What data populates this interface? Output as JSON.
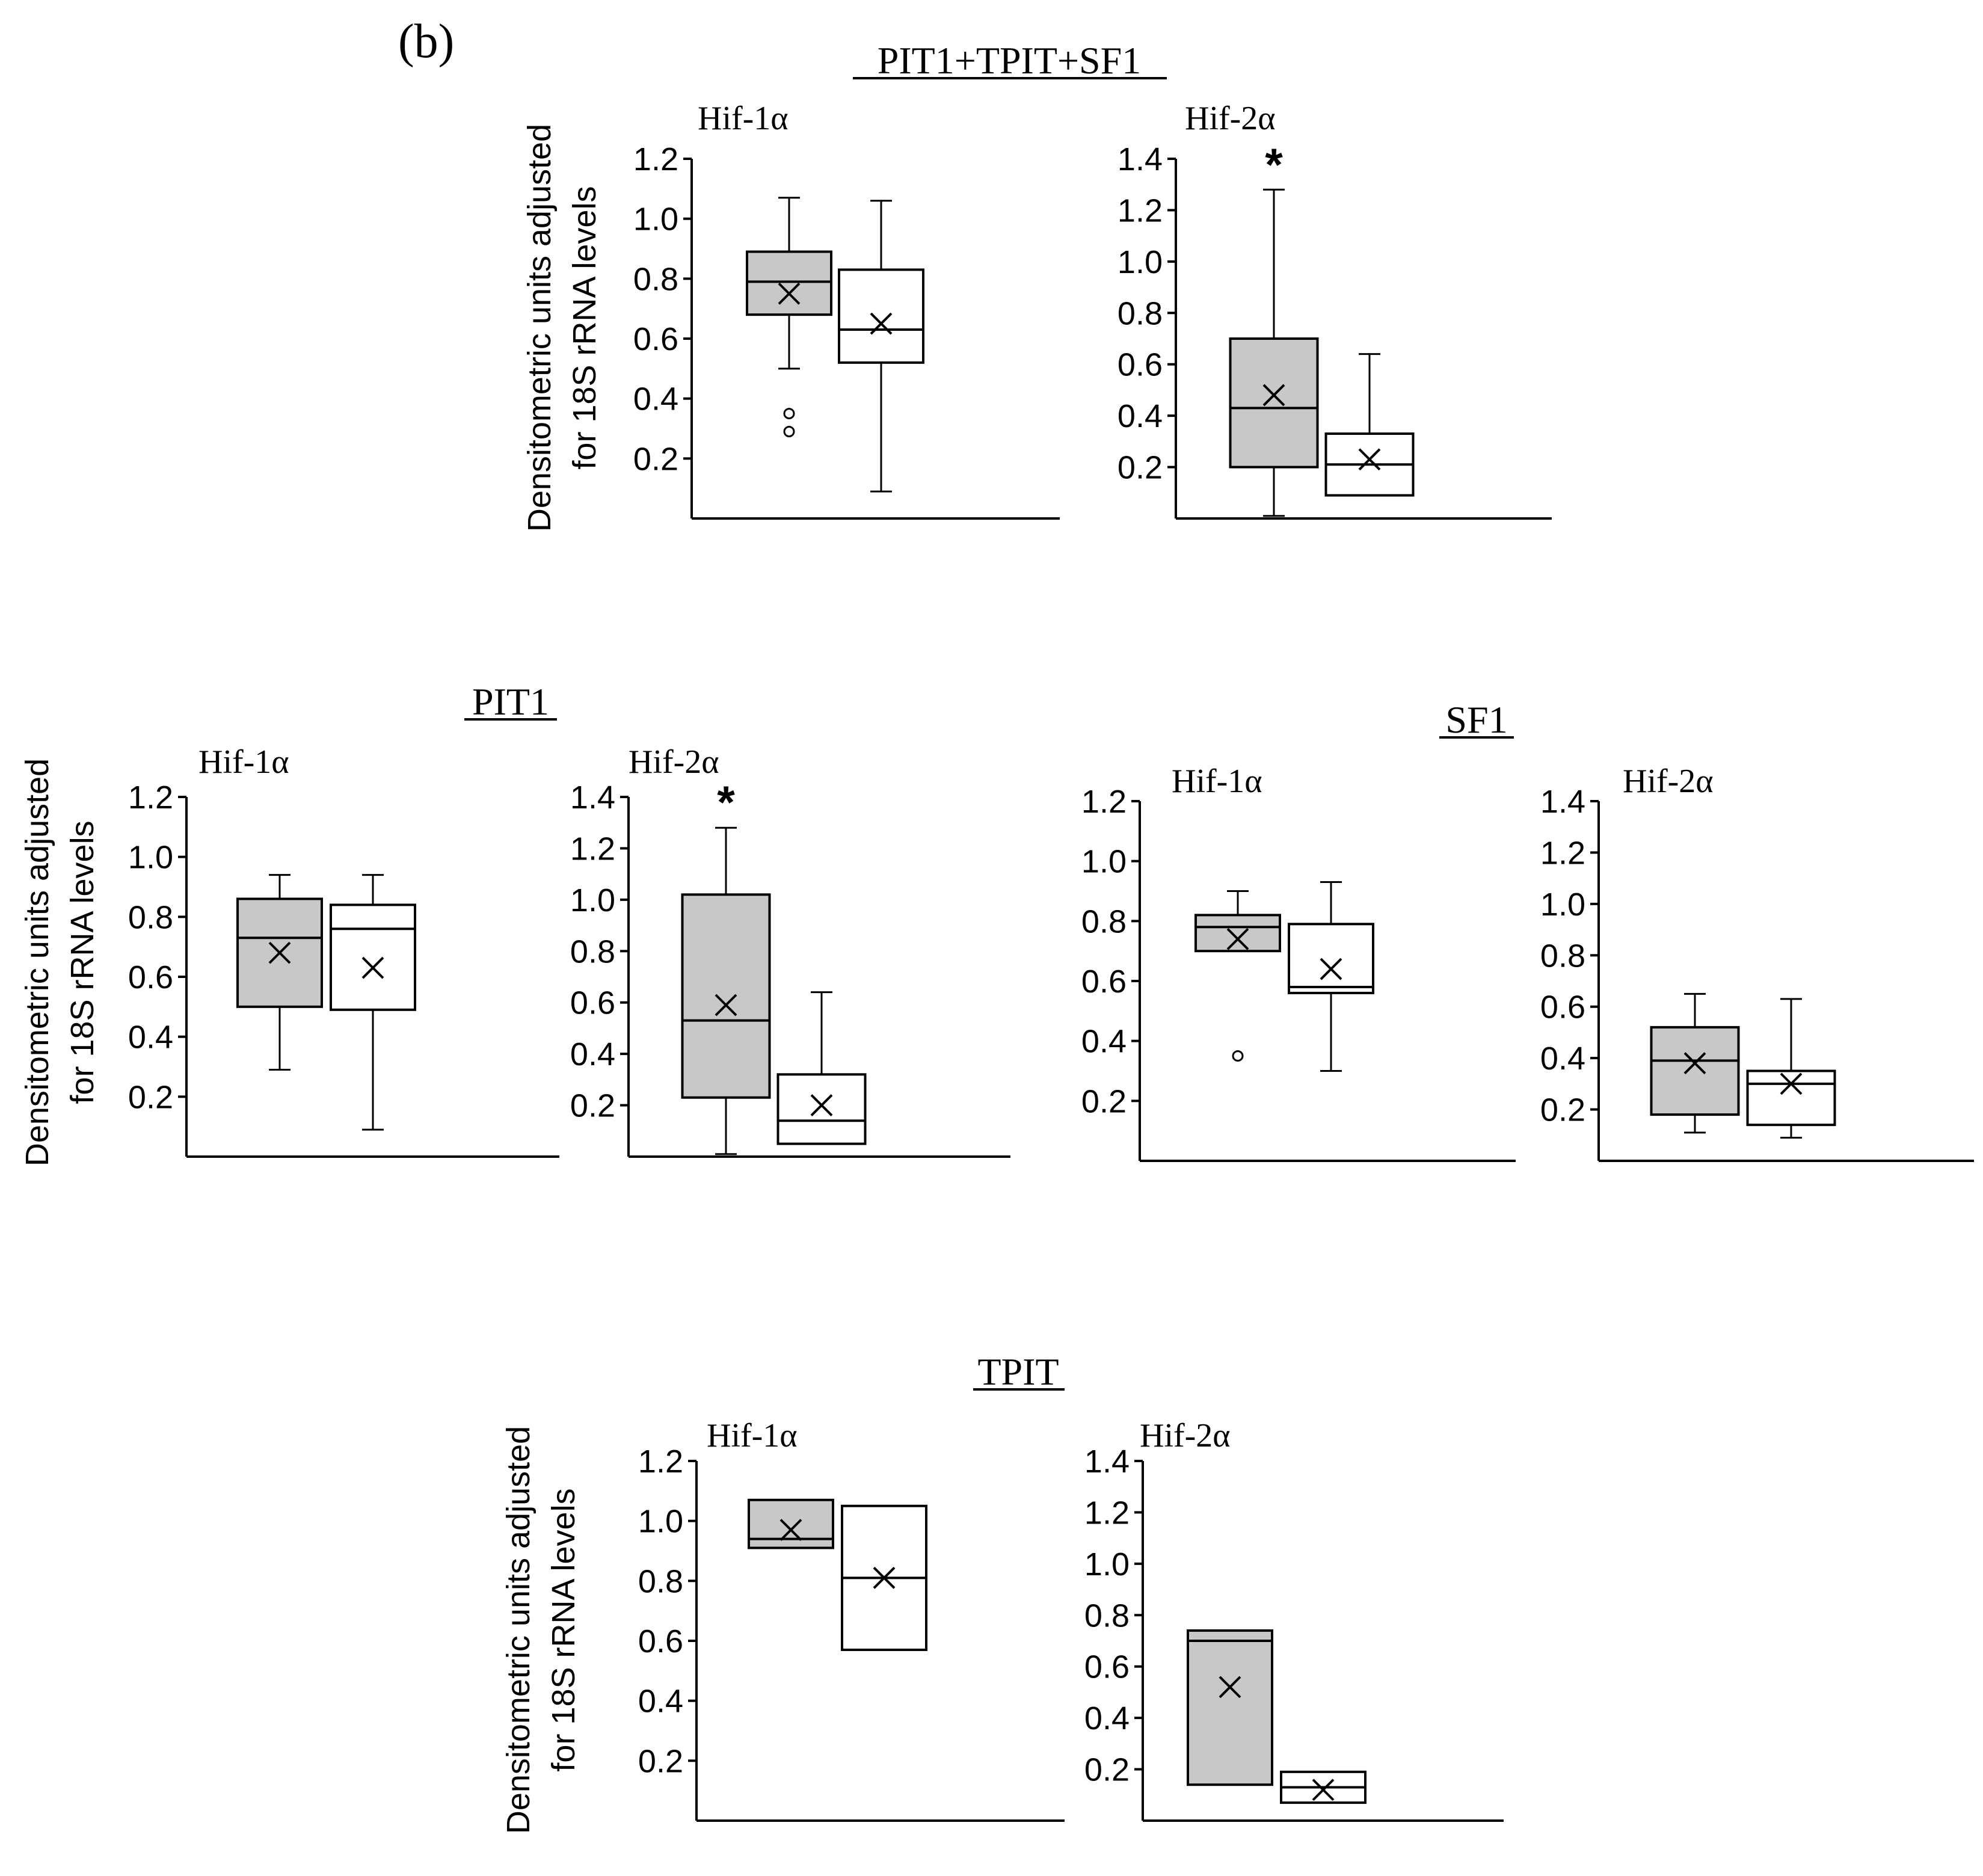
{
  "figure": {
    "panel_label": "(b)",
    "ylabel_line1": "Densitometric units adjusted",
    "ylabel_line2": "for 18S rRNA levels",
    "significance_marker": "*",
    "colors": {
      "group_a_fill": "#c8c8c8",
      "group_b_fill": "#ffffff",
      "stroke": "#000000"
    }
  },
  "groups": [
    {
      "title": "PIT1+TPIT+SF1"
    },
    {
      "title": "PIT1"
    },
    {
      "title": "SF1"
    },
    {
      "title": "TPIT"
    }
  ],
  "chart_data": [
    {
      "type": "box",
      "group": "PIT1+TPIT+SF1",
      "title": "Hif-1α",
      "yticks": [
        "0.2",
        "0.4",
        "0.6",
        "0.8",
        "1.0",
        "1.2"
      ],
      "ylim": [
        0,
        1.2
      ],
      "significant": false,
      "boxes": [
        {
          "fill": "gray",
          "min": 0.5,
          "q1": 0.68,
          "median": 0.79,
          "q3": 0.89,
          "max": 1.07,
          "mean": 0.75,
          "outliers": [
            0.35,
            0.29
          ]
        },
        {
          "fill": "white",
          "min": 0.09,
          "q1": 0.52,
          "median": 0.63,
          "q3": 0.83,
          "max": 1.06,
          "mean": 0.65,
          "outliers": []
        }
      ]
    },
    {
      "type": "box",
      "group": "PIT1+TPIT+SF1",
      "title": "Hif-2α",
      "yticks": [
        "0.2",
        "0.4",
        "0.6",
        "0.8",
        "1.0",
        "1.2",
        "1.4"
      ],
      "ylim": [
        0,
        1.4
      ],
      "significant": true,
      "boxes": [
        {
          "fill": "gray",
          "min": 0.01,
          "q1": 0.2,
          "median": 0.43,
          "q3": 0.7,
          "max": 1.28,
          "mean": 0.48,
          "outliers": []
        },
        {
          "fill": "white",
          "min": 0.09,
          "q1": 0.09,
          "median": 0.21,
          "q3": 0.33,
          "max": 0.64,
          "mean": 0.23,
          "outliers": []
        }
      ]
    },
    {
      "type": "box",
      "group": "PIT1",
      "title": "Hif-1α",
      "yticks": [
        "0.2",
        "0.4",
        "0.6",
        "0.8",
        "1.0",
        "1.2"
      ],
      "ylim": [
        0,
        1.2
      ],
      "significant": false,
      "boxes": [
        {
          "fill": "gray",
          "min": 0.29,
          "q1": 0.5,
          "median": 0.73,
          "q3": 0.86,
          "max": 0.94,
          "mean": 0.68,
          "outliers": []
        },
        {
          "fill": "white",
          "min": 0.09,
          "q1": 0.49,
          "median": 0.76,
          "q3": 0.84,
          "max": 0.94,
          "mean": 0.63,
          "outliers": []
        }
      ]
    },
    {
      "type": "box",
      "group": "PIT1",
      "title": "Hif-2α",
      "yticks": [
        "0.2",
        "0.4",
        "0.6",
        "0.8",
        "1.0",
        "1.2",
        "1.4"
      ],
      "ylim": [
        0,
        1.4
      ],
      "significant": true,
      "boxes": [
        {
          "fill": "gray",
          "min": 0.01,
          "q1": 0.23,
          "median": 0.53,
          "q3": 1.02,
          "max": 1.28,
          "mean": 0.59,
          "outliers": []
        },
        {
          "fill": "white",
          "min": 0.05,
          "q1": 0.05,
          "median": 0.14,
          "q3": 0.32,
          "max": 0.64,
          "mean": 0.2,
          "outliers": []
        }
      ]
    },
    {
      "type": "box",
      "group": "SF1",
      "title": "Hif-1α",
      "yticks": [
        "0.2",
        "0.4",
        "0.6",
        "0.8",
        "1.0",
        "1.2"
      ],
      "ylim": [
        0,
        1.2
      ],
      "significant": false,
      "boxes": [
        {
          "fill": "gray",
          "min": 0.7,
          "q1": 0.7,
          "median": 0.78,
          "q3": 0.82,
          "max": 0.9,
          "mean": 0.74,
          "outliers": [
            0.35
          ]
        },
        {
          "fill": "white",
          "min": 0.3,
          "q1": 0.56,
          "median": 0.58,
          "q3": 0.79,
          "max": 0.93,
          "mean": 0.64,
          "outliers": []
        }
      ]
    },
    {
      "type": "box",
      "group": "SF1",
      "title": "Hif-2α",
      "yticks": [
        "0.2",
        "0.4",
        "0.6",
        "0.8",
        "1.0",
        "1.2",
        "1.4"
      ],
      "ylim": [
        0,
        1.4
      ],
      "significant": false,
      "boxes": [
        {
          "fill": "gray",
          "min": 0.11,
          "q1": 0.18,
          "median": 0.39,
          "q3": 0.52,
          "max": 0.65,
          "mean": 0.38,
          "outliers": []
        },
        {
          "fill": "white",
          "min": 0.09,
          "q1": 0.14,
          "median": 0.3,
          "q3": 0.35,
          "max": 0.63,
          "mean": 0.3,
          "outliers": []
        }
      ]
    },
    {
      "type": "box",
      "group": "TPIT",
      "title": "Hif-1α",
      "yticks": [
        "0.2",
        "0.4",
        "0.6",
        "0.8",
        "1.0",
        "1.2"
      ],
      "ylim": [
        0,
        1.2
      ],
      "significant": false,
      "boxes": [
        {
          "fill": "gray",
          "min": 0.91,
          "q1": 0.91,
          "median": 0.94,
          "q3": 1.07,
          "max": 1.07,
          "mean": 0.97,
          "outliers": []
        },
        {
          "fill": "white",
          "min": 0.57,
          "q1": 0.57,
          "median": 0.81,
          "q3": 1.05,
          "max": 1.05,
          "mean": 0.81,
          "outliers": []
        }
      ]
    },
    {
      "type": "box",
      "group": "TPIT",
      "title": "Hif-2α",
      "yticks": [
        "0.2",
        "0.4",
        "0.6",
        "0.8",
        "1.0",
        "1.2",
        "1.4"
      ],
      "ylim": [
        0,
        1.4
      ],
      "significant": false,
      "boxes": [
        {
          "fill": "gray",
          "min": 0.14,
          "q1": 0.14,
          "median": 0.7,
          "q3": 0.74,
          "max": 0.74,
          "mean": 0.52,
          "outliers": []
        },
        {
          "fill": "white",
          "min": 0.07,
          "q1": 0.07,
          "median": 0.13,
          "q3": 0.19,
          "max": 0.19,
          "mean": 0.12,
          "outliers": []
        }
      ]
    }
  ]
}
